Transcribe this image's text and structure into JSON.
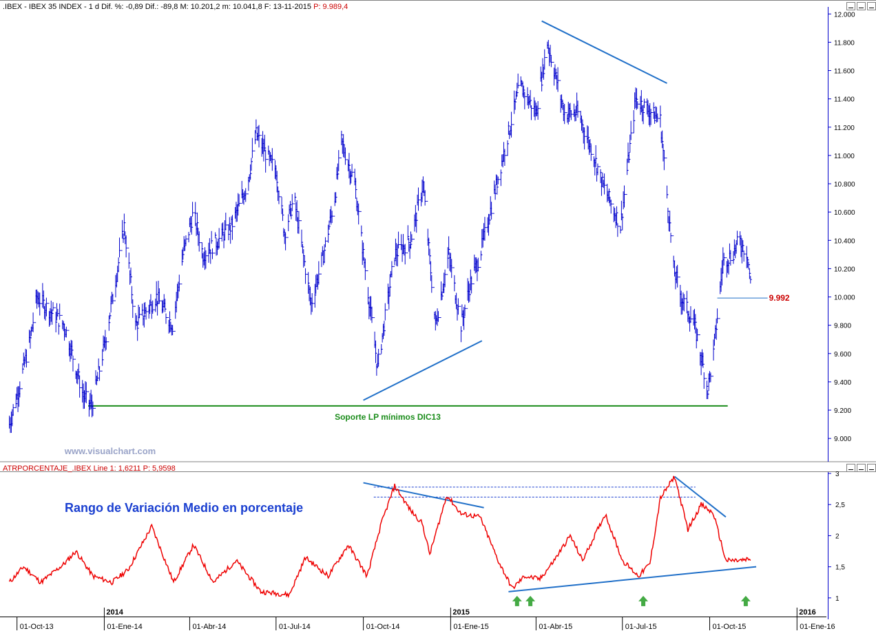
{
  "main_panel": {
    "header": {
      "symbol": ".IBEX",
      "name": "IBEX 35 INDEX",
      "period": "1 d",
      "dif_pct": "Dif. %: -0,89",
      "dif": "Dif.: -89,8",
      "max": "M: 10.201,2",
      "min": "m: 10.041,8",
      "date": "F: 13-11-2015",
      "price": "P: 9.989,4"
    },
    "watermark": "www.visualchart.com",
    "price_label": "9.992",
    "support_label": "Soporte LP mínimos DIC13"
  },
  "indicator_panel": {
    "header": {
      "name": "ATRPORCENTAJE_.IBEX",
      "line": "Line 1: 1,6211",
      "price": "P: 5,9598"
    },
    "title": "Rango de Variación Medio en porcentaje"
  },
  "time_axis": {
    "years": [
      "2014",
      "2015",
      "2016"
    ],
    "dates": [
      "01-Oct-13",
      "01-Ene-14",
      "01-Abr-14",
      "01-Jul-14",
      "01-Oct-14",
      "01-Ene-15",
      "01-Abr-15",
      "01-Jul-15",
      "01-Oct-15",
      "01-Ene-16"
    ]
  },
  "colors": {
    "price_bars": "#0000cc",
    "indicator_line": "#ee0000",
    "trendline": "#1f6fc8",
    "support": "#1a8c1a",
    "price_label": "#cc0000",
    "arrow": "#44aa44"
  },
  "chart_data": [
    {
      "type": "line",
      "series": [
        {
          "name": "IBEX 35 INDEX",
          "points": [
            [
              "2013-09-23",
              9100
            ],
            [
              "2013-10-01",
              9300
            ],
            [
              "2013-10-15",
              9700
            ],
            [
              "2013-10-22",
              10000
            ],
            [
              "2013-11-05",
              9900
            ],
            [
              "2013-11-20",
              9800
            ],
            [
              "2013-12-10",
              9300
            ],
            [
              "2013-12-19",
              9230
            ],
            [
              "2014-01-01",
              9650
            ],
            [
              "2014-01-15",
              10200
            ],
            [
              "2014-01-22",
              10500
            ],
            [
              "2014-02-03",
              9800
            ],
            [
              "2014-02-25",
              10000
            ],
            [
              "2014-03-14",
              9800
            ],
            [
              "2014-03-25",
              10300
            ],
            [
              "2014-04-05",
              10600
            ],
            [
              "2014-04-15",
              10300
            ],
            [
              "2014-05-01",
              10400
            ],
            [
              "2014-05-15",
              10500
            ],
            [
              "2014-06-01",
              10800
            ],
            [
              "2014-06-10",
              11150
            ],
            [
              "2014-06-25",
              10950
            ],
            [
              "2014-07-01",
              10900
            ],
            [
              "2014-07-10",
              10450
            ],
            [
              "2014-07-20",
              10700
            ],
            [
              "2014-08-07",
              9950
            ],
            [
              "2014-08-20",
              10300
            ],
            [
              "2014-09-01",
              10700
            ],
            [
              "2014-09-08",
              11100
            ],
            [
              "2014-09-22",
              10800
            ],
            [
              "2014-10-01",
              10300
            ],
            [
              "2014-10-16",
              9500
            ],
            [
              "2014-11-03",
              10300
            ],
            [
              "2014-11-20",
              10400
            ],
            [
              "2014-12-03",
              10800
            ],
            [
              "2014-12-16",
              9800
            ],
            [
              "2014-12-30",
              10300
            ],
            [
              "2015-01-12",
              9800
            ],
            [
              "2015-01-22",
              10100
            ],
            [
              "2015-02-01",
              10300
            ],
            [
              "2015-02-15",
              10700
            ],
            [
              "2015-03-01",
              11100
            ],
            [
              "2015-03-15",
              11500
            ],
            [
              "2015-04-01",
              11300
            ],
            [
              "2015-04-13",
              11800
            ],
            [
              "2015-05-01",
              11300
            ],
            [
              "2015-05-15",
              11300
            ],
            [
              "2015-06-01",
              11000
            ],
            [
              "2015-06-10",
              10800
            ],
            [
              "2015-06-29",
              10500
            ],
            [
              "2015-07-15",
              11400
            ],
            [
              "2015-08-01",
              11300
            ],
            [
              "2015-08-10",
              11250
            ],
            [
              "2015-08-24",
              10200
            ],
            [
              "2015-09-01",
              10000
            ],
            [
              "2015-09-15",
              9800
            ],
            [
              "2015-09-29",
              9350
            ],
            [
              "2015-10-05",
              9600
            ],
            [
              "2015-10-15",
              10250
            ],
            [
              "2015-10-25",
              10300
            ],
            [
              "2015-11-01",
              10400
            ],
            [
              "2015-11-10",
              10300
            ],
            [
              "2015-11-13",
              10100
            ]
          ]
        }
      ],
      "x_axis": {
        "type": "date",
        "range": [
          "2013-09-16",
          "2016-02-01"
        ]
      },
      "y_axis": {
        "range": [
          8850,
          12050
        ],
        "ticks": [
          "9.000",
          "9.200",
          "9.400",
          "9.600",
          "9.800",
          "10.000",
          "10.200",
          "10.400",
          "10.600",
          "10.800",
          "11.000",
          "11.200",
          "11.400",
          "11.600",
          "11.800",
          "12.000"
        ]
      },
      "annotations": {
        "support": {
          "from": [
            "2013-12-15",
            9230
          ],
          "to": [
            "2015-10-20",
            9230
          ]
        },
        "price_line": {
          "from": [
            "2015-10-09",
            9992
          ],
          "to": [
            "2015-12-01",
            9992
          ]
        },
        "trendlines": [
          {
            "from": [
              "2014-10-01",
              9270
            ],
            "to": [
              "2015-02-03",
              9690
            ]
          },
          {
            "from": [
              "2015-04-07",
              11950
            ],
            "to": [
              "2015-08-17",
              11510
            ]
          }
        ]
      }
    },
    {
      "type": "line",
      "series": [
        {
          "name": "ATRPORCENTAJE_.IBEX",
          "points": [
            [
              "2013-09-23",
              1.25
            ],
            [
              "2013-10-08",
              1.5
            ],
            [
              "2013-10-26",
              1.25
            ],
            [
              "2013-11-20",
              1.55
            ],
            [
              "2013-12-02",
              1.75
            ],
            [
              "2013-12-20",
              1.35
            ],
            [
              "2014-01-09",
              1.25
            ],
            [
              "2014-01-26",
              1.45
            ],
            [
              "2014-02-20",
              2.15
            ],
            [
              "2014-03-15",
              1.25
            ],
            [
              "2014-04-05",
              1.85
            ],
            [
              "2014-04-26",
              1.25
            ],
            [
              "2014-05-20",
              1.6
            ],
            [
              "2014-06-15",
              1.1
            ],
            [
              "2014-07-15",
              1.05
            ],
            [
              "2014-08-01",
              1.65
            ],
            [
              "2014-08-25",
              1.35
            ],
            [
              "2014-09-15",
              1.85
            ],
            [
              "2014-10-05",
              1.35
            ],
            [
              "2014-10-20",
              2.2
            ],
            [
              "2014-11-03",
              2.8
            ],
            [
              "2014-11-20",
              2.4
            ],
            [
              "2014-12-02",
              2.2
            ],
            [
              "2014-12-10",
              1.7
            ],
            [
              "2014-12-28",
              2.65
            ],
            [
              "2015-01-12",
              2.35
            ],
            [
              "2015-02-01",
              2.3
            ],
            [
              "2015-02-20",
              1.6
            ],
            [
              "2015-03-07",
              1.15
            ],
            [
              "2015-03-20",
              1.35
            ],
            [
              "2015-04-05",
              1.3
            ],
            [
              "2015-04-20",
              1.6
            ],
            [
              "2015-05-07",
              2.0
            ],
            [
              "2015-05-20",
              1.6
            ],
            [
              "2015-06-13",
              2.35
            ],
            [
              "2015-07-01",
              1.6
            ],
            [
              "2015-07-18",
              1.35
            ],
            [
              "2015-07-30",
              1.55
            ],
            [
              "2015-08-10",
              2.6
            ],
            [
              "2015-08-25",
              2.95
            ],
            [
              "2015-09-08",
              2.1
            ],
            [
              "2015-09-22",
              2.5
            ],
            [
              "2015-10-05",
              2.35
            ],
            [
              "2015-10-18",
              1.6
            ],
            [
              "2015-11-03",
              1.6
            ],
            [
              "2015-11-13",
              1.62
            ]
          ]
        }
      ],
      "x_axis": {
        "type": "date",
        "range": [
          "2013-09-16",
          "2016-02-01"
        ]
      },
      "y_axis": {
        "range": [
          0.7,
          3.0
        ],
        "ticks": [
          "1",
          "1,5",
          "2",
          "2,5",
          "3"
        ]
      },
      "annotations": {
        "dashed_levels": [
          2.78,
          2.62
        ],
        "trendlines": [
          {
            "from": [
              "2014-10-01",
              2.85
            ],
            "to": [
              "2015-02-05",
              2.45
            ]
          },
          {
            "from": [
              "2015-08-25",
              2.95
            ],
            "to": [
              "2015-10-18",
              2.3
            ]
          },
          {
            "from": [
              "2015-03-03",
              1.1
            ],
            "to": [
              "2015-11-19",
              1.5
            ]
          }
        ],
        "arrows": [
          "2015-03-12",
          "2015-03-26",
          "2015-07-23",
          "2015-11-08"
        ]
      }
    }
  ]
}
